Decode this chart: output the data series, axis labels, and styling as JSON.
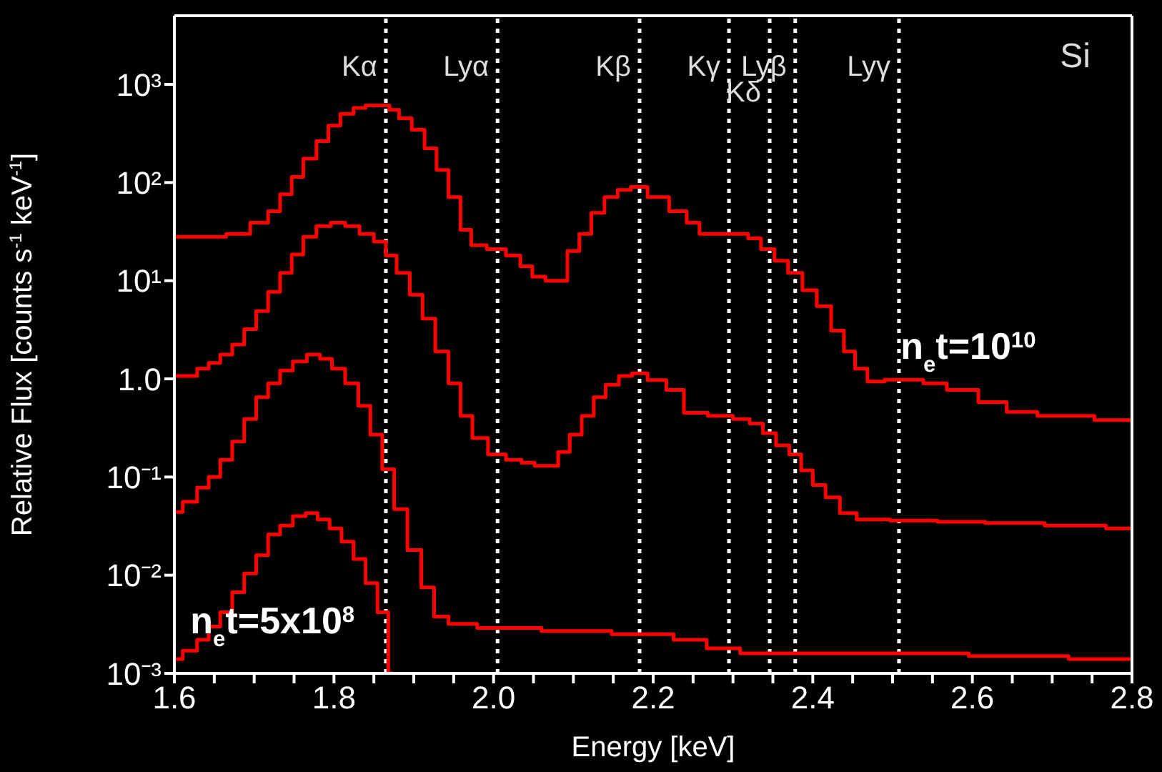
{
  "chart_data": {
    "type": "step",
    "xlabel": "Energy [keV]",
    "ylabel": "Relative Flux [counts s$^{-1}$ keV$^{-1}$]",
    "log": "y",
    "xlim": [
      1.6,
      2.8
    ],
    "xticks": [
      1.6,
      {
        "value": 1.65,
        "label": null
      },
      {
        "value": 1.7,
        "label": null
      },
      {
        "value": 1.75,
        "label": null
      },
      1.8,
      {
        "value": 1.85,
        "label": null
      },
      {
        "value": 1.9,
        "label": null
      },
      {
        "value": 1.95,
        "label": null
      },
      {
        "value": 2.0,
        "label": "2.0"
      },
      {
        "value": 2.05,
        "label": null
      },
      {
        "value": 2.1,
        "label": null
      },
      {
        "value": 2.15,
        "label": null
      },
      2.2,
      {
        "value": 2.25,
        "label": null
      },
      {
        "value": 2.3,
        "label": null
      },
      {
        "value": 2.35,
        "label": null
      },
      2.4,
      {
        "value": 2.45,
        "label": null
      },
      {
        "value": 2.5,
        "label": null
      },
      {
        "value": 2.55,
        "label": null
      },
      2.6,
      {
        "value": 2.65,
        "label": null
      },
      {
        "value": 2.7,
        "label": null
      },
      {
        "value": 2.75,
        "label": null
      },
      2.8
    ],
    "ylim": [
      0.001,
      5000
    ],
    "yticks": [
      {
        "value": 1000,
        "label": "10³"
      },
      {
        "value": 100,
        "label": "10²"
      },
      {
        "value": 10,
        "label": "10¹"
      },
      {
        "value": 1,
        "label": "1.0"
      },
      {
        "value": 0.1,
        "label": "10⁻¹"
      },
      {
        "value": 0.01,
        "label": "10⁻²"
      },
      {
        "value": 0.001,
        "label": "10⁻³"
      }
    ],
    "grid": false,
    "marker": "none",
    "line_style": "solid",
    "series": [
      {
        "color": "#ff0000",
        "x": [
          1.6,
          1.65,
          1.68,
          1.71,
          1.725,
          1.74,
          1.754,
          1.769,
          1.787,
          1.799,
          1.817,
          1.832,
          1.847,
          1.865,
          1.874,
          1.889,
          1.906,
          1.921,
          1.936,
          1.951,
          1.966,
          1.978,
          2.005,
          2.026,
          2.041,
          2.056,
          2.074,
          2.085,
          2.1,
          2.115,
          2.13,
          2.148,
          2.163,
          2.181,
          2.205,
          2.235,
          2.249,
          2.267,
          2.312,
          2.326,
          2.344,
          2.36,
          2.378,
          2.396,
          2.414,
          2.432,
          2.446,
          2.46,
          2.477,
          2.503,
          2.527,
          2.55,
          2.586,
          2.629,
          2.657,
          2.706,
          2.8
        ],
        "values": [
          28,
          28,
          30,
          39,
          51,
          76,
          114,
          175,
          264,
          380,
          500,
          575,
          610,
          610,
          550,
          450,
          345,
          223,
          134,
          71,
          33,
          23,
          21,
          18,
          14,
          11,
          10,
          10,
          20,
          30,
          49,
          71,
          84,
          90,
          71,
          51,
          39,
          30,
          30,
          27,
          21,
          16,
          12,
          8,
          5.5,
          3.1,
          1.9,
          1.27,
          0.94,
          0.98,
          0.98,
          0.9,
          0.77,
          0.58,
          0.46,
          0.42,
          0.38
        ]
      },
      {
        "color": "#ff0000",
        "x": [
          1.6,
          1.621,
          1.636,
          1.65,
          1.665,
          1.68,
          1.695,
          1.71,
          1.725,
          1.74,
          1.754,
          1.769,
          1.787,
          1.805,
          1.823,
          1.841,
          1.859,
          1.871,
          1.886,
          1.904,
          1.918,
          1.936,
          1.951,
          1.966,
          1.981,
          2.005,
          2.026,
          2.044,
          2.059,
          2.074,
          2.088,
          2.103,
          2.118,
          2.133,
          2.148,
          2.166,
          2.181,
          2.205,
          2.228,
          2.249,
          2.288,
          2.312,
          2.33,
          2.345,
          2.363,
          2.378,
          2.393,
          2.407,
          2.425,
          2.443,
          2.467,
          2.527,
          2.586,
          2.646,
          2.735,
          2.8
        ],
        "values": [
          1.07,
          1.07,
          1.27,
          1.45,
          1.77,
          2.24,
          3.2,
          4.9,
          7.7,
          12,
          18.5,
          28,
          36,
          39,
          36,
          30,
          25,
          18,
          12,
          7.2,
          4.1,
          1.9,
          0.9,
          0.42,
          0.25,
          0.17,
          0.15,
          0.14,
          0.13,
          0.13,
          0.18,
          0.27,
          0.42,
          0.65,
          0.87,
          1.07,
          1.14,
          0.97,
          0.77,
          0.45,
          0.42,
          0.39,
          0.35,
          0.28,
          0.21,
          0.17,
          0.117,
          0.083,
          0.062,
          0.043,
          0.037,
          0.036,
          0.035,
          0.034,
          0.032,
          0.03
        ]
      },
      {
        "color": "#ff0000",
        "x": [
          1.6,
          1.621,
          1.636,
          1.65,
          1.665,
          1.68,
          1.695,
          1.71,
          1.725,
          1.74,
          1.757,
          1.775,
          1.79,
          1.805,
          1.823,
          1.838,
          1.853,
          1.868,
          1.883,
          1.901,
          1.918,
          1.933,
          1.954,
          2.005,
          2.115,
          2.181,
          2.205,
          2.246,
          2.288,
          2.33,
          2.503,
          2.688,
          2.753,
          2.8
        ],
        "values": [
          0.044,
          0.056,
          0.078,
          0.1,
          0.15,
          0.23,
          0.39,
          0.65,
          0.9,
          1.22,
          1.5,
          1.77,
          1.6,
          1.27,
          0.9,
          0.53,
          0.27,
          0.12,
          0.047,
          0.018,
          0.0075,
          0.0038,
          0.0032,
          0.0029,
          0.0027,
          0.0025,
          0.0025,
          0.0022,
          0.0018,
          0.0016,
          0.0016,
          0.0015,
          0.0014,
          0.0014
        ]
      },
      {
        "color": "#ff0000",
        "x": [
          1.6,
          1.621,
          1.636,
          1.65,
          1.665,
          1.68,
          1.695,
          1.71,
          1.725,
          1.74,
          1.757,
          1.772,
          1.787,
          1.802,
          1.817,
          1.832,
          1.847,
          1.862,
          1.874
        ],
        "values": [
          0.0014,
          0.0017,
          0.0022,
          0.003,
          0.0042,
          0.0067,
          0.0104,
          0.016,
          0.026,
          0.032,
          0.04,
          0.043,
          0.037,
          0.03,
          0.022,
          0.0146,
          0.0083,
          0.0042,
          0.001
        ]
      }
    ],
    "ref_lines": [
      {
        "axis": "x",
        "value": 1.865,
        "label": "Kα",
        "color": "#ffffff",
        "line_style": "dotted"
      },
      {
        "axis": "x",
        "value": 2.005,
        "label": "Lyα",
        "color": "#ffffff",
        "line_style": "dotted"
      },
      {
        "axis": "x",
        "value": 2.183,
        "label": "Kβ",
        "color": "#ffffff",
        "line_style": "dotted"
      },
      {
        "axis": "x",
        "value": 2.295,
        "label": "Kγ",
        "color": "#ffffff",
        "line_style": "dotted"
      },
      {
        "axis": "x",
        "value": 2.346,
        "label": "Kδ",
        "color": "#ffffff",
        "line_style": "dotted"
      },
      {
        "axis": "x",
        "value": 2.378,
        "label": "Lyβ",
        "color": "#ffffff",
        "line_style": "dotted"
      },
      {
        "axis": "x",
        "value": 2.508,
        "label": "Lyγ",
        "color": "#ffffff",
        "line_style": "dotted"
      }
    ],
    "annotations": [
      "Si",
      {
        "text": "n$_{e}$t=10$^{10}$",
        "x": 2.51,
        "y": 1.0
      },
      {
        "text": "n$_{e}$t=5x10$^{8}$",
        "x": 1.62,
        "y": 0.0016
      }
    ]
  }
}
